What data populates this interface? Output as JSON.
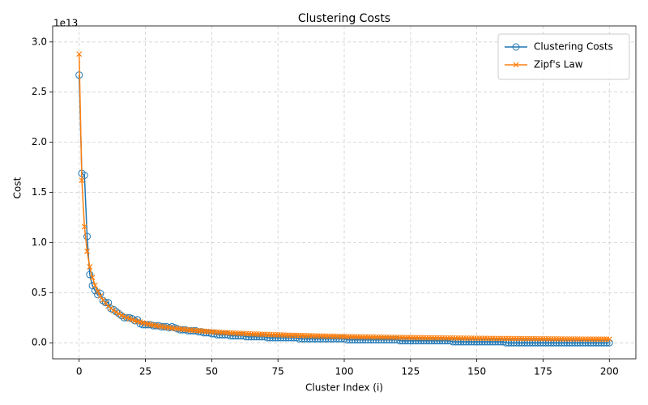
{
  "chart_data": {
    "type": "line",
    "title": "Clustering Costs",
    "xlabel": "Cluster Index (i)",
    "ylabel": "Cost",
    "y_offset_label": "1e13",
    "x": [
      0,
      1,
      2,
      3,
      4,
      5,
      6,
      7,
      8,
      9,
      10,
      11,
      12,
      13,
      14,
      15,
      16,
      17,
      18,
      19,
      20,
      21,
      22,
      23,
      24,
      25,
      26,
      27,
      28,
      29,
      30,
      31,
      32,
      33,
      34,
      35,
      36,
      37,
      38,
      39,
      40,
      41,
      42,
      43,
      44,
      45,
      46,
      47,
      48,
      49,
      50,
      51,
      52,
      53,
      54,
      55,
      56,
      57,
      58,
      59,
      60,
      61,
      62,
      63,
      64,
      65,
      66,
      67,
      68,
      69,
      70,
      71,
      72,
      73,
      74,
      75,
      76,
      77,
      78,
      79,
      80,
      81,
      82,
      83,
      84,
      85,
      86,
      87,
      88,
      89,
      90,
      91,
      92,
      93,
      94,
      95,
      96,
      97,
      98,
      99,
      100,
      101,
      102,
      103,
      104,
      105,
      106,
      107,
      108,
      109,
      110,
      111,
      112,
      113,
      114,
      115,
      116,
      117,
      118,
      119,
      120,
      121,
      122,
      123,
      124,
      125,
      126,
      127,
      128,
      129,
      130,
      131,
      132,
      133,
      134,
      135,
      136,
      137,
      138,
      139,
      140,
      141,
      142,
      143,
      144,
      145,
      146,
      147,
      148,
      149,
      150,
      151,
      152,
      153,
      154,
      155,
      156,
      157,
      158,
      159,
      160,
      161,
      162,
      163,
      164,
      165,
      166,
      167,
      168,
      169,
      170,
      171,
      172,
      173,
      174,
      175,
      176,
      177,
      178,
      179,
      180,
      181,
      182,
      183,
      184,
      185,
      186,
      187,
      188,
      189,
      190,
      191,
      192,
      193,
      194,
      195,
      196,
      197,
      198,
      199,
      200
    ],
    "series": [
      {
        "name": "Clustering Costs",
        "color": "#1f77b4",
        "marker": "circle",
        "values": [
          2.67,
          1.69,
          1.67,
          1.06,
          0.68,
          0.57,
          0.52,
          0.48,
          0.49,
          0.42,
          0.4,
          0.4,
          0.34,
          0.33,
          0.31,
          0.29,
          0.27,
          0.25,
          0.25,
          0.25,
          0.24,
          0.22,
          0.23,
          0.19,
          0.18,
          0.18,
          0.18,
          0.18,
          0.17,
          0.17,
          0.17,
          0.16,
          0.16,
          0.16,
          0.15,
          0.16,
          0.15,
          0.14,
          0.13,
          0.13,
          0.13,
          0.12,
          0.12,
          0.12,
          0.12,
          0.11,
          0.11,
          0.1,
          0.1,
          0.1,
          0.09,
          0.09,
          0.08,
          0.08,
          0.08,
          0.08,
          0.08,
          0.07,
          0.07,
          0.07,
          0.07,
          0.07,
          0.07,
          0.06,
          0.06,
          0.06,
          0.06,
          0.06,
          0.06,
          0.06,
          0.06,
          0.05,
          0.05,
          0.05,
          0.05,
          0.05,
          0.05,
          0.05,
          0.05,
          0.05,
          0.05,
          0.05,
          0.05,
          0.04,
          0.04,
          0.04,
          0.04,
          0.04,
          0.04,
          0.04,
          0.04,
          0.04,
          0.04,
          0.04,
          0.04,
          0.04,
          0.04,
          0.04,
          0.04,
          0.04,
          0.04,
          0.03,
          0.03,
          0.03,
          0.03,
          0.03,
          0.03,
          0.03,
          0.03,
          0.03,
          0.03,
          0.03,
          0.03,
          0.03,
          0.03,
          0.03,
          0.03,
          0.03,
          0.03,
          0.03,
          0.03,
          0.02,
          0.02,
          0.02,
          0.02,
          0.02,
          0.02,
          0.02,
          0.02,
          0.02,
          0.02,
          0.02,
          0.02,
          0.02,
          0.02,
          0.02,
          0.02,
          0.02,
          0.02,
          0.02,
          0.02,
          0.01,
          0.01,
          0.01,
          0.01,
          0.01,
          0.01,
          0.01,
          0.01,
          0.01,
          0.01,
          0.01,
          0.01,
          0.01,
          0.01,
          0.01,
          0.01,
          0.01,
          0.01,
          0.01,
          0.01,
          0,
          0,
          0,
          0,
          0,
          0,
          0,
          0,
          0,
          0,
          0,
          0,
          0,
          0,
          0,
          0,
          0,
          0,
          0,
          0,
          0,
          0,
          0,
          0,
          0,
          0,
          0,
          0,
          0,
          0,
          0,
          0,
          0,
          0,
          0,
          0,
          0,
          0,
          0,
          0
        ]
      },
      {
        "name": "Zipf's Law",
        "color": "#ff7f0e",
        "marker": "x",
        "values": [
          2.88,
          1.62,
          1.158,
          0.912,
          0.757,
          0.651,
          0.573,
          0.513,
          0.466,
          0.426,
          0.394,
          0.366,
          0.343,
          0.322,
          0.304,
          0.289,
          0.274,
          0.262,
          0.25,
          0.24,
          0.23,
          0.221,
          0.213,
          0.206,
          0.199,
          0.193,
          0.187,
          0.181,
          0.176,
          0.171,
          0.166,
          0.162,
          0.158,
          0.154,
          0.151,
          0.147,
          0.144,
          0.141,
          0.138,
          0.135,
          0.132,
          0.129,
          0.127,
          0.124,
          0.122,
          0.12,
          0.118,
          0.116,
          0.114,
          0.112,
          0.11,
          0.108,
          0.107,
          0.105,
          0.103,
          0.102,
          0.1,
          0.099,
          0.098,
          0.096,
          0.095,
          0.094,
          0.093,
          0.092,
          0.09,
          0.089,
          0.088,
          0.087,
          0.086,
          0.085,
          0.084,
          0.083,
          0.082,
          0.081,
          0.08,
          0.08,
          0.079,
          0.078,
          0.077,
          0.076,
          0.075,
          0.075,
          0.074,
          0.073,
          0.073,
          0.072,
          0.071,
          0.071,
          0.07,
          0.069,
          0.069,
          0.068,
          0.068,
          0.067,
          0.066,
          0.066,
          0.065,
          0.065,
          0.064,
          0.063,
          0.063,
          0.062,
          0.062,
          0.061,
          0.061,
          0.06,
          0.06,
          0.059,
          0.059,
          0.059,
          0.058,
          0.058,
          0.057,
          0.057,
          0.056,
          0.056,
          0.056,
          0.055,
          0.055,
          0.054,
          0.054,
          0.054,
          0.053,
          0.053,
          0.053,
          0.052,
          0.052,
          0.052,
          0.051,
          0.051,
          0.051,
          0.05,
          0.05,
          0.05,
          0.05,
          0.049,
          0.049,
          0.049,
          0.048,
          0.048,
          0.048,
          0.048,
          0.047,
          0.047,
          0.047,
          0.047,
          0.046,
          0.046,
          0.046,
          0.046,
          0.045,
          0.045,
          0.045,
          0.045,
          0.044,
          0.044,
          0.044,
          0.044,
          0.043,
          0.043,
          0.043,
          0.043,
          0.043,
          0.042,
          0.042,
          0.042,
          0.042,
          0.042,
          0.041,
          0.041,
          0.041,
          0.041,
          0.041,
          0.04,
          0.04,
          0.04,
          0.04,
          0.04,
          0.039,
          0.039,
          0.039,
          0.039,
          0.039,
          0.038,
          0.038,
          0.038,
          0.038,
          0.038,
          0.038,
          0.037,
          0.037,
          0.037,
          0.037,
          0.037,
          0.036,
          0.036,
          0.036,
          0.036,
          0.036,
          0.036,
          0.035
        ]
      }
    ],
    "xlim": [
      -10,
      210
    ],
    "ylim": [
      -0.16,
      3.16
    ],
    "xticks": [
      0,
      25,
      50,
      75,
      100,
      125,
      150,
      175,
      200
    ],
    "yticks": [
      {
        "value": 0,
        "label": "0.0"
      },
      {
        "value": 0.5,
        "label": "0.5"
      },
      {
        "value": 1,
        "label": "1.0"
      },
      {
        "value": 1.5,
        "label": "1.5"
      },
      {
        "value": 2,
        "label": "2.0"
      },
      {
        "value": 2.5,
        "label": "2.5"
      },
      {
        "value": 3,
        "label": "3.0"
      }
    ],
    "grid": true,
    "legend": "upper right"
  }
}
